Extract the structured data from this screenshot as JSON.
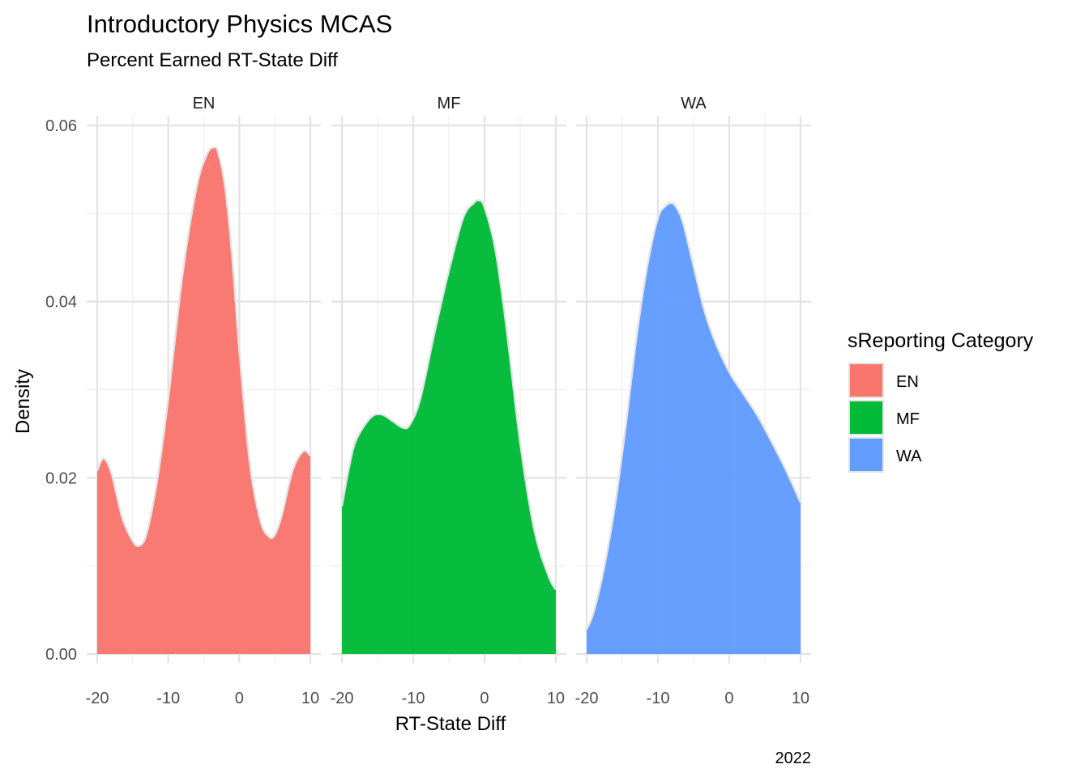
{
  "chart_data": {
    "type": "area",
    "title": "Introductory Physics MCAS",
    "subtitle": "Percent Earned RT-State Diff",
    "xlabel": "RT-State Diff",
    "ylabel": "Density",
    "caption": "2022",
    "xlim": [
      -20,
      10
    ],
    "ylim": [
      0,
      0.06
    ],
    "x_ticks": [
      -20,
      -10,
      0,
      10
    ],
    "x_tick_labels": [
      "-20",
      "-10",
      "0",
      "10"
    ],
    "y_ticks": [
      0,
      0.02,
      0.04,
      0.06
    ],
    "y_tick_labels": [
      "0.00",
      "0.02",
      "0.04",
      "0.06"
    ],
    "grid": true,
    "legend": {
      "title": "sReporting Category",
      "position": "right"
    },
    "panels": [
      {
        "strip": "EN",
        "color": "#F8766D",
        "x": [
          -20,
          -19.1,
          -18,
          -16.5,
          -15,
          -14,
          -13,
          -11.5,
          -10,
          -8,
          -6,
          -4.5,
          -3.6,
          -3,
          -2,
          -1,
          0,
          1.5,
          3,
          4.2,
          5,
          6,
          7.5,
          9,
          10
        ],
        "y": [
          0.0208,
          0.0222,
          0.0205,
          0.0155,
          0.0128,
          0.0123,
          0.0138,
          0.02,
          0.029,
          0.043,
          0.053,
          0.0568,
          0.0575,
          0.057,
          0.053,
          0.045,
          0.0345,
          0.0215,
          0.015,
          0.0133,
          0.0135,
          0.0158,
          0.0208,
          0.023,
          0.0225
        ]
      },
      {
        "strip": "MF",
        "color": "#00BA38",
        "x": [
          -20,
          -19,
          -18,
          -16,
          -14.5,
          -13,
          -11.5,
          -10.5,
          -9,
          -7,
          -5,
          -3,
          -1.5,
          -0.8,
          0,
          1.5,
          3,
          5,
          7,
          9,
          10
        ],
        "y": [
          0.0168,
          0.0212,
          0.0243,
          0.0268,
          0.0272,
          0.0265,
          0.0257,
          0.026,
          0.029,
          0.0365,
          0.0435,
          0.0495,
          0.0512,
          0.0515,
          0.0507,
          0.046,
          0.0375,
          0.024,
          0.014,
          0.0088,
          0.0073
        ]
      },
      {
        "strip": "WA",
        "color": "#619CFF",
        "x": [
          -20,
          -19,
          -17.5,
          -16,
          -14.5,
          -13,
          -11.5,
          -10,
          -9,
          -8.2,
          -7.5,
          -6.5,
          -5,
          -3.5,
          -2,
          0,
          2,
          4,
          6,
          8,
          10
        ],
        "y": [
          0.0028,
          0.0048,
          0.01,
          0.017,
          0.026,
          0.036,
          0.044,
          0.0495,
          0.0508,
          0.0512,
          0.0508,
          0.049,
          0.044,
          0.039,
          0.0355,
          0.032,
          0.0295,
          0.027,
          0.024,
          0.0208,
          0.0172
        ]
      }
    ]
  }
}
